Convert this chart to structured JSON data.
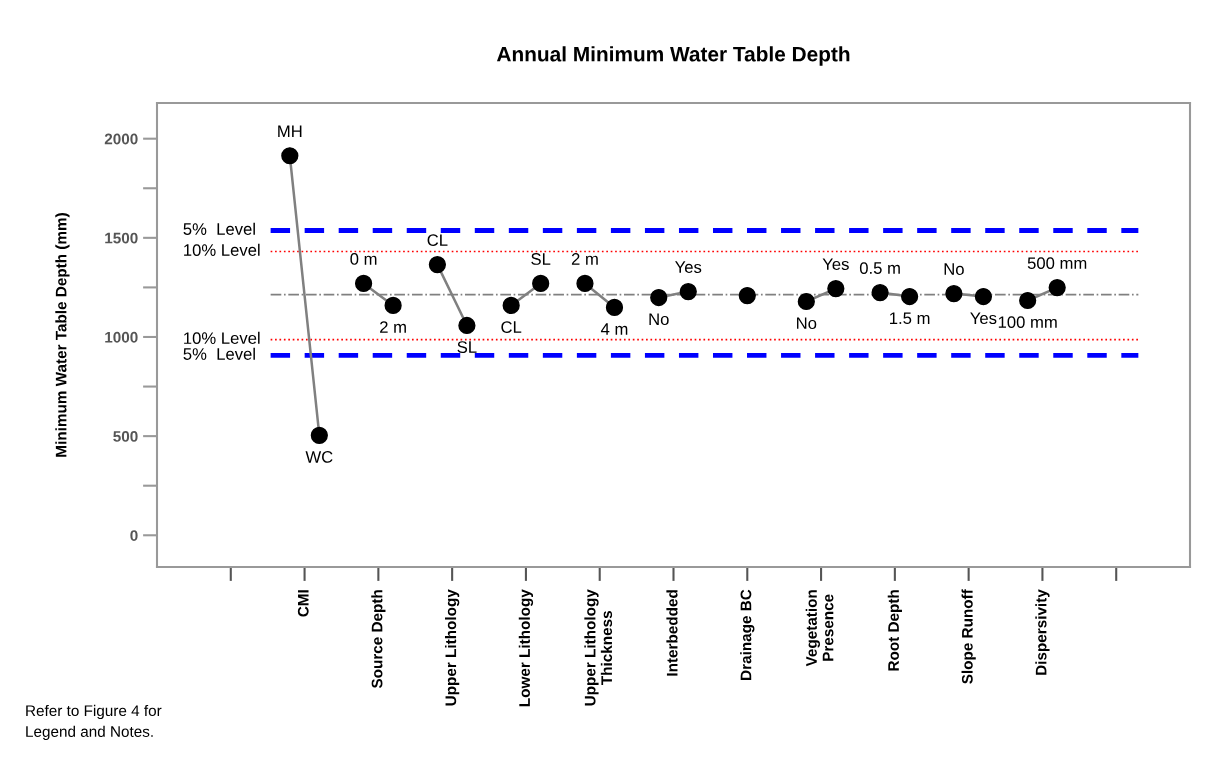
{
  "chart_data": {
    "type": "scatter",
    "title": "Annual Minimum Water Table Depth",
    "ylabel": "Minimum Water Table Depth (mm)",
    "categories": [
      null,
      "CMI",
      "Source Depth",
      "Upper Lithology",
      "Lower Lithology",
      "Upper Lithology\nThickness",
      "Interbedded",
      "Drainage BC",
      "Vegetation\nPresence",
      "Root Depth",
      "Slope Runoff",
      "Dispersivity",
      null
    ],
    "ylim": [
      -160,
      2180
    ],
    "yticks": [
      0,
      {
        "value": 250,
        "label": null
      },
      500,
      {
        "value": 750,
        "label": null
      },
      1000,
      {
        "value": 1250,
        "label": null
      },
      1500,
      {
        "value": 1750,
        "label": null
      },
      2000
    ],
    "marker": "circle",
    "grid": false,
    "series": [
      {
        "color": "#000000",
        "values": [
          null,
          1914,
          1270,
          1365,
          1159,
          1270,
          1199,
          1209,
          1179,
          1224,
          1219,
          1184,
          null
        ]
      },
      {
        "color": "#000000",
        "values": [
          null,
          504,
          1159,
          1058,
          1270,
          1149,
          1229,
          null,
          1244,
          1204,
          1204,
          1249,
          null
        ]
      }
    ],
    "ref_lines": [
      {
        "axis": "y",
        "value": 1537,
        "label": "5%  Level",
        "color": "#0000ff",
        "line_style": "dashed"
      },
      {
        "axis": "y",
        "value": 1431,
        "label": "10% Level",
        "color": "#ff0000",
        "line_style": "dotted"
      },
      {
        "axis": "y",
        "value": 1214,
        "color": "#808080",
        "line_style": "dashdot"
      },
      {
        "axis": "y",
        "value": 987,
        "label": "10% Level",
        "color": "#ff0000",
        "line_style": "dotted"
      },
      {
        "axis": "y",
        "value": 907,
        "label": "5%  Level",
        "color": "#0000ff",
        "line_style": "dashed"
      }
    ],
    "annotations": [
      {
        "text": "MH",
        "y": 1914
      },
      {
        "text": "WC",
        "y": 504
      },
      {
        "text": "0 m",
        "y": 1270
      },
      {
        "text": "2 m",
        "y": 1159
      },
      {
        "text": "CL",
        "y": 1365
      },
      {
        "text": "SL",
        "y": 1058
      },
      {
        "text": "CL",
        "y": 1159
      },
      {
        "text": "SL",
        "y": 1270
      },
      {
        "text": "2 m",
        "y": 1270
      },
      {
        "text": "4 m",
        "y": 1149
      },
      {
        "text": "No",
        "y": 1199
      },
      {
        "text": "Yes",
        "y": 1229
      },
      {
        "text": "No",
        "y": 1179
      },
      {
        "text": "Yes",
        "y": 1244
      },
      {
        "text": "0.5 m",
        "y": 1224
      },
      {
        "text": "1.5 m",
        "y": 1204
      },
      {
        "text": "No",
        "y": 1219
      },
      {
        "text": "Yes",
        "y": 1204
      },
      {
        "text": "100 mm",
        "y": 1184
      },
      {
        "text": "500 mm",
        "y": 1249
      },
      "Refer to Figure 4 for\nLegend and Notes."
    ]
  }
}
